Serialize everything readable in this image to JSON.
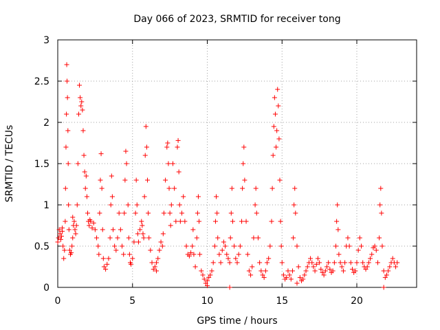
{
  "chart_data": {
    "type": "scatter",
    "title": "Day 066 of 2023, SRMTID for receiver tong",
    "xlabel": "GPS time / hours",
    "ylabel": "SRMTID / TECUs",
    "xlim": [
      0,
      24
    ],
    "ylim": [
      0,
      3
    ],
    "grid": true,
    "marker": "plus",
    "marker_color": "#ff0000",
    "x_ticks": [
      0,
      5,
      10,
      15,
      20
    ],
    "x_tick_labels": [
      "0",
      "5",
      "10",
      "15",
      "20"
    ],
    "y_ticks": [
      0,
      0.5,
      1,
      1.5,
      2,
      2.5,
      3
    ],
    "y_tick_labels": [
      "0",
      "0.5",
      "1",
      "1.5",
      "2",
      "2.5",
      "3"
    ],
    "series": [
      {
        "name": "SRMTID",
        "points": [
          [
            0.0,
            0.55
          ],
          [
            0.05,
            0.6
          ],
          [
            0.1,
            0.7
          ],
          [
            0.15,
            0.65
          ],
          [
            0.2,
            0.58
          ],
          [
            0.25,
            0.62
          ],
          [
            0.3,
            0.68
          ],
          [
            0.35,
            0.5
          ],
          [
            0.4,
            0.35
          ],
          [
            0.45,
            0.45
          ],
          [
            0.5,
            0.8
          ],
          [
            0.52,
            1.2
          ],
          [
            0.55,
            1.7
          ],
          [
            0.58,
            2.1
          ],
          [
            0.6,
            2.7
          ],
          [
            0.62,
            2.5
          ],
          [
            0.65,
            2.3
          ],
          [
            0.68,
            1.9
          ],
          [
            0.7,
            1.5
          ],
          [
            0.72,
            1.0
          ],
          [
            0.75,
            0.7
          ],
          [
            0.8,
            0.45
          ],
          [
            0.85,
            0.4
          ],
          [
            0.9,
            0.42
          ],
          [
            0.95,
            0.5
          ],
          [
            1.0,
            0.6
          ],
          [
            1.05,
            0.75
          ],
          [
            1.1,
            0.8
          ],
          [
            1.15,
            0.7
          ],
          [
            1.2,
            0.65
          ],
          [
            1.25,
            0.75
          ],
          [
            1.3,
            1.0
          ],
          [
            1.35,
            1.5
          ],
          [
            1.4,
            2.1
          ],
          [
            1.45,
            2.45
          ],
          [
            1.5,
            2.3
          ],
          [
            1.55,
            2.2
          ],
          [
            1.6,
            2.25
          ],
          [
            1.65,
            2.15
          ],
          [
            1.7,
            1.9
          ],
          [
            1.75,
            1.6
          ],
          [
            1.8,
            1.4
          ],
          [
            1.85,
            1.2
          ],
          [
            1.9,
            1.35
          ],
          [
            1.95,
            1.1
          ],
          [
            2.0,
            0.9
          ],
          [
            2.05,
            0.8
          ],
          [
            2.1,
            0.75
          ],
          [
            2.2,
            0.8
          ],
          [
            2.3,
            0.72
          ],
          [
            2.4,
            0.78
          ],
          [
            2.5,
            0.7
          ],
          [
            2.6,
            0.6
          ],
          [
            2.7,
            0.5
          ],
          [
            2.75,
            0.4
          ],
          [
            2.8,
            0.9
          ],
          [
            2.85,
            1.3
          ],
          [
            2.9,
            1.62
          ],
          [
            2.95,
            1.2
          ],
          [
            3.0,
            0.7
          ],
          [
            3.05,
            0.35
          ],
          [
            3.1,
            0.25
          ],
          [
            3.2,
            0.22
          ],
          [
            3.3,
            0.28
          ],
          [
            3.4,
            0.35
          ],
          [
            3.5,
            0.6
          ],
          [
            3.55,
            1.0
          ],
          [
            3.6,
            1.35
          ],
          [
            3.65,
            1.1
          ],
          [
            3.7,
            0.7
          ],
          [
            3.8,
            0.5
          ],
          [
            3.9,
            0.45
          ],
          [
            4.0,
            0.6
          ],
          [
            4.1,
            0.9
          ],
          [
            4.2,
            0.7
          ],
          [
            4.3,
            0.5
          ],
          [
            4.4,
            0.4
          ],
          [
            4.45,
            0.9
          ],
          [
            4.5,
            1.3
          ],
          [
            4.55,
            1.65
          ],
          [
            4.6,
            1.5
          ],
          [
            4.7,
            1.0
          ],
          [
            4.75,
            0.6
          ],
          [
            4.8,
            0.4
          ],
          [
            4.85,
            0.3
          ],
          [
            4.9,
            0.28
          ],
          [
            5.0,
            0.35
          ],
          [
            5.1,
            0.55
          ],
          [
            5.2,
            0.9
          ],
          [
            5.25,
            1.3
          ],
          [
            5.3,
            1.0
          ],
          [
            5.35,
            0.65
          ],
          [
            5.4,
            0.55
          ],
          [
            5.5,
            0.7
          ],
          [
            5.6,
            0.8
          ],
          [
            5.65,
            0.75
          ],
          [
            5.7,
            0.65
          ],
          [
            5.75,
            0.6
          ],
          [
            5.8,
            1.1
          ],
          [
            5.85,
            1.6
          ],
          [
            5.9,
            1.95
          ],
          [
            5.95,
            1.7
          ],
          [
            6.0,
            1.3
          ],
          [
            6.05,
            0.9
          ],
          [
            6.1,
            0.6
          ],
          [
            6.2,
            0.45
          ],
          [
            6.3,
            0.3
          ],
          [
            6.4,
            0.22
          ],
          [
            6.5,
            0.25
          ],
          [
            6.6,
            0.3
          ],
          [
            6.7,
            0.35
          ],
          [
            6.8,
            0.45
          ],
          [
            6.9,
            0.55
          ],
          [
            7.0,
            0.5
          ],
          [
            7.05,
            0.65
          ],
          [
            7.1,
            0.9
          ],
          [
            7.2,
            1.3
          ],
          [
            7.3,
            1.7
          ],
          [
            7.35,
            1.75
          ],
          [
            7.4,
            1.5
          ],
          [
            7.45,
            1.2
          ],
          [
            7.5,
            0.9
          ],
          [
            7.55,
            0.75
          ],
          [
            7.6,
            1.0
          ],
          [
            7.7,
            1.5
          ],
          [
            7.8,
            1.2
          ],
          [
            7.9,
            0.8
          ],
          [
            8.0,
            1.7
          ],
          [
            8.05,
            1.78
          ],
          [
            8.1,
            1.4
          ],
          [
            8.15,
            1.0
          ],
          [
            8.2,
            0.8
          ],
          [
            8.3,
            0.9
          ],
          [
            8.4,
            1.1
          ],
          [
            8.5,
            0.8
          ],
          [
            8.6,
            0.5
          ],
          [
            8.7,
            0.4
          ],
          [
            8.8,
            0.38
          ],
          [
            8.9,
            0.42
          ],
          [
            9.0,
            0.5
          ],
          [
            9.05,
            0.7
          ],
          [
            9.1,
            0.4
          ],
          [
            9.2,
            0.25
          ],
          [
            9.3,
            0.6
          ],
          [
            9.35,
            0.9
          ],
          [
            9.4,
            1.1
          ],
          [
            9.45,
            0.8
          ],
          [
            9.5,
            0.4
          ],
          [
            9.6,
            0.2
          ],
          [
            9.7,
            0.15
          ],
          [
            9.8,
            0.1
          ],
          [
            9.9,
            0.05
          ],
          [
            10.0,
            0.08
          ],
          [
            10.1,
            0.12
          ],
          [
            10.2,
            0.15
          ],
          [
            10.3,
            0.2
          ],
          [
            10.4,
            0.3
          ],
          [
            10.5,
            0.5
          ],
          [
            10.55,
            0.8
          ],
          [
            10.6,
            1.1
          ],
          [
            10.65,
            0.9
          ],
          [
            10.7,
            0.6
          ],
          [
            10.8,
            0.4
          ],
          [
            10.9,
            0.3
          ],
          [
            11.0,
            0.45
          ],
          [
            11.1,
            0.55
          ],
          [
            11.2,
            0.5
          ],
          [
            11.3,
            0.4
          ],
          [
            11.4,
            0.35
          ],
          [
            11.5,
            0.3
          ],
          [
            11.55,
            0.6
          ],
          [
            11.6,
            0.9
          ],
          [
            11.65,
            1.2
          ],
          [
            11.7,
            0.8
          ],
          [
            11.8,
            0.5
          ],
          [
            11.9,
            0.35
          ],
          [
            12.0,
            0.3
          ],
          [
            12.1,
            0.4
          ],
          [
            12.2,
            0.5
          ],
          [
            12.3,
            0.8
          ],
          [
            12.35,
            1.2
          ],
          [
            12.4,
            1.5
          ],
          [
            12.45,
            1.7
          ],
          [
            12.5,
            1.3
          ],
          [
            12.6,
            0.8
          ],
          [
            12.7,
            0.4
          ],
          [
            12.8,
            0.2
          ],
          [
            12.9,
            0.15
          ],
          [
            13.0,
            0.25
          ],
          [
            13.1,
            0.6
          ],
          [
            13.2,
            1.0
          ],
          [
            13.25,
            1.2
          ],
          [
            13.3,
            0.9
          ],
          [
            13.4,
            0.6
          ],
          [
            13.5,
            0.3
          ],
          [
            13.6,
            0.2
          ],
          [
            13.7,
            0.15
          ],
          [
            13.8,
            0.12
          ],
          [
            13.9,
            0.2
          ],
          [
            14.0,
            0.3
          ],
          [
            14.1,
            0.35
          ],
          [
            14.2,
            0.5
          ],
          [
            14.3,
            0.8
          ],
          [
            14.35,
            1.2
          ],
          [
            14.4,
            1.6
          ],
          [
            14.45,
            1.95
          ],
          [
            14.5,
            2.3
          ],
          [
            14.55,
            2.1
          ],
          [
            14.6,
            1.7
          ],
          [
            14.65,
            1.9
          ],
          [
            14.7,
            2.4
          ],
          [
            14.75,
            2.2
          ],
          [
            14.8,
            1.8
          ],
          [
            14.85,
            1.3
          ],
          [
            14.9,
            0.8
          ],
          [
            14.95,
            0.5
          ],
          [
            15.0,
            0.3
          ],
          [
            15.1,
            0.15
          ],
          [
            15.2,
            0.1
          ],
          [
            15.3,
            0.12
          ],
          [
            15.4,
            0.2
          ],
          [
            15.5,
            0.15
          ],
          [
            15.6,
            0.1
          ],
          [
            15.7,
            0.2
          ],
          [
            15.75,
            0.6
          ],
          [
            15.8,
            1.0
          ],
          [
            15.85,
            1.2
          ],
          [
            15.9,
            0.9
          ],
          [
            16.0,
            0.5
          ],
          [
            16.1,
            0.25
          ],
          [
            16.2,
            0.12
          ],
          [
            16.3,
            0.08
          ],
          [
            16.4,
            0.1
          ],
          [
            16.5,
            0.15
          ],
          [
            16.6,
            0.2
          ],
          [
            16.7,
            0.25
          ],
          [
            16.8,
            0.3
          ],
          [
            16.9,
            0.35
          ],
          [
            17.0,
            0.3
          ],
          [
            17.1,
            0.25
          ],
          [
            17.2,
            0.2
          ],
          [
            17.3,
            0.28
          ],
          [
            17.4,
            0.35
          ],
          [
            17.5,
            0.3
          ],
          [
            17.6,
            0.22
          ],
          [
            17.7,
            0.18
          ],
          [
            17.8,
            0.15
          ],
          [
            17.9,
            0.2
          ],
          [
            18.0,
            0.25
          ],
          [
            18.1,
            0.3
          ],
          [
            18.2,
            0.22
          ],
          [
            18.3,
            0.18
          ],
          [
            18.4,
            0.2
          ],
          [
            18.5,
            0.3
          ],
          [
            18.6,
            0.5
          ],
          [
            18.65,
            0.8
          ],
          [
            18.7,
            1.0
          ],
          [
            18.75,
            0.7
          ],
          [
            18.8,
            0.4
          ],
          [
            18.9,
            0.3
          ],
          [
            19.0,
            0.25
          ],
          [
            19.1,
            0.2
          ],
          [
            19.2,
            0.3
          ],
          [
            19.3,
            0.5
          ],
          [
            19.4,
            0.6
          ],
          [
            19.5,
            0.5
          ],
          [
            19.6,
            0.3
          ],
          [
            19.7,
            0.22
          ],
          [
            19.8,
            0.18
          ],
          [
            19.9,
            0.2
          ],
          [
            20.0,
            0.3
          ],
          [
            20.1,
            0.45
          ],
          [
            20.2,
            0.6
          ],
          [
            20.3,
            0.5
          ],
          [
            20.4,
            0.3
          ],
          [
            20.5,
            0.25
          ],
          [
            20.6,
            0.22
          ],
          [
            20.7,
            0.25
          ],
          [
            20.8,
            0.3
          ],
          [
            20.9,
            0.35
          ],
          [
            21.0,
            0.4
          ],
          [
            21.1,
            0.48
          ],
          [
            21.2,
            0.5
          ],
          [
            21.3,
            0.45
          ],
          [
            21.4,
            0.3
          ],
          [
            21.5,
            0.6
          ],
          [
            21.55,
            1.0
          ],
          [
            21.6,
            1.2
          ],
          [
            21.65,
            0.9
          ],
          [
            21.7,
            0.5
          ],
          [
            21.8,
            0.2
          ],
          [
            21.9,
            0.12
          ],
          [
            22.0,
            0.15
          ],
          [
            22.1,
            0.2
          ],
          [
            22.2,
            0.25
          ],
          [
            22.3,
            0.3
          ],
          [
            22.4,
            0.35
          ],
          [
            22.5,
            0.3
          ],
          [
            22.6,
            0.25
          ],
          [
            22.7,
            0.3
          ],
          [
            11.5,
            0.0
          ],
          [
            21.8,
            0.0
          ],
          [
            1.0,
            0.85
          ],
          [
            2.15,
            0.82
          ],
          [
            0.3,
            0.72
          ],
          [
            6.6,
            0.2
          ],
          [
            16.0,
            0.05
          ],
          [
            10.0,
            0.02
          ]
        ]
      }
    ]
  }
}
